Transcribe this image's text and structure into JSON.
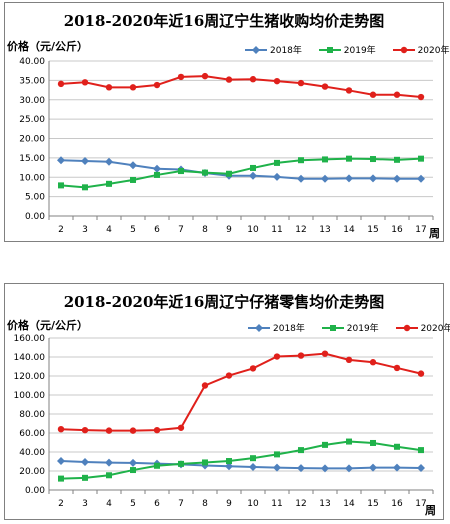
{
  "chart_data": [
    {
      "type": "line",
      "title": "2018-2020年近16周辽宁生猪收购均价走势图",
      "ylabel": "价格（元/公斤）",
      "xlabel": "周",
      "x": [
        2,
        3,
        4,
        5,
        6,
        7,
        8,
        9,
        10,
        11,
        12,
        13,
        14,
        15,
        16,
        17
      ],
      "ylim": [
        0,
        40
      ],
      "yticks": [
        "0.00",
        "5.00",
        "10.00",
        "15.00",
        "20.00",
        "25.00",
        "30.00",
        "35.00",
        "40.00"
      ],
      "grid": true,
      "legend_position": "top-right",
      "series": [
        {
          "name": "2018年",
          "color": "#4F81BD",
          "marker": "diamond",
          "values": [
            14.4,
            14.2,
            14.0,
            13.1,
            12.2,
            12.0,
            11.1,
            10.4,
            10.4,
            10.1,
            9.6,
            9.6,
            9.7,
            9.7,
            9.6,
            9.6
          ]
        },
        {
          "name": "2019年",
          "color": "#1FB24A",
          "marker": "square",
          "values": [
            7.9,
            7.4,
            8.3,
            9.3,
            10.6,
            11.6,
            11.2,
            10.9,
            12.4,
            13.7,
            14.4,
            14.6,
            14.8,
            14.7,
            14.5,
            14.8
          ]
        },
        {
          "name": "2020年",
          "color": "#E0201B",
          "marker": "circle",
          "values": [
            34.1,
            34.5,
            33.2,
            33.2,
            33.8,
            35.9,
            36.1,
            35.2,
            35.3,
            34.8,
            34.3,
            33.4,
            32.4,
            31.3,
            31.3,
            30.7
          ]
        }
      ]
    },
    {
      "type": "line",
      "title": "2018-2020年近16周辽宁仔猪零售均价走势图",
      "ylabel": "价格（元/公斤）",
      "xlabel": "周",
      "x": [
        2,
        3,
        4,
        5,
        6,
        7,
        8,
        9,
        10,
        11,
        12,
        13,
        14,
        15,
        16,
        17
      ],
      "ylim": [
        0,
        160
      ],
      "yticks": [
        "0.00",
        "20.00",
        "40.00",
        "60.00",
        "80.00",
        "100.00",
        "120.00",
        "140.00",
        "160.00"
      ],
      "grid": true,
      "legend_position": "top-right",
      "series": [
        {
          "name": "2018年",
          "color": "#4F81BD",
          "marker": "diamond",
          "values": [
            30.5,
            29.5,
            28.8,
            28.5,
            27.8,
            27.0,
            25.8,
            25.0,
            24.2,
            23.5,
            23.0,
            22.8,
            22.8,
            23.5,
            23.5,
            23.2
          ]
        },
        {
          "name": "2019年",
          "color": "#1FB24A",
          "marker": "square",
          "values": [
            12.0,
            12.8,
            15.5,
            21.0,
            25.5,
            27.5,
            29.0,
            30.5,
            33.5,
            37.5,
            42.0,
            47.5,
            51.0,
            49.5,
            45.5,
            42.0
          ]
        },
        {
          "name": "2020年",
          "color": "#E0201B",
          "marker": "circle",
          "values": [
            64.0,
            63.0,
            62.5,
            62.5,
            63.0,
            65.5,
            110.0,
            120.5,
            128.0,
            140.5,
            141.5,
            143.5,
            137.0,
            134.5,
            128.5,
            122.5
          ]
        }
      ]
    }
  ]
}
